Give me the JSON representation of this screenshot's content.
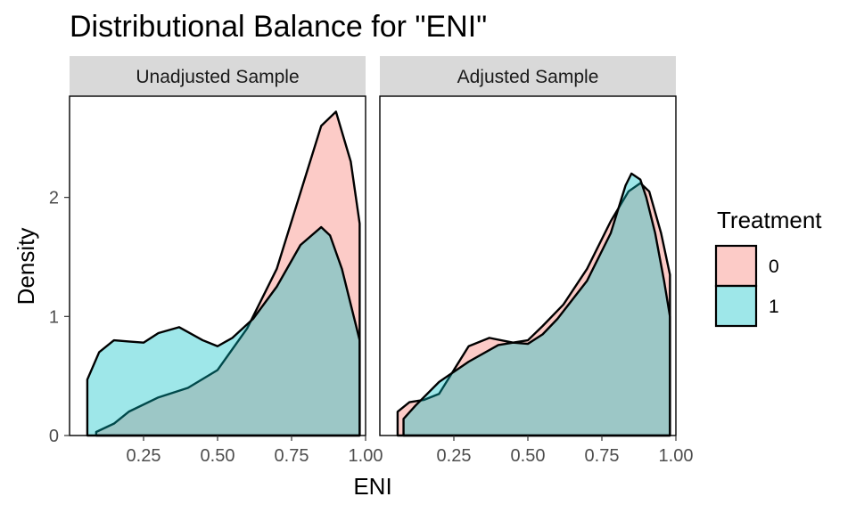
{
  "chart_data": {
    "type": "area",
    "title": "Distributional Balance for \"ENI\"",
    "xlabel": "ENI",
    "ylabel": "Density",
    "xlim": [
      0.0,
      1.0
    ],
    "ylim": [
      0,
      2.85
    ],
    "x_ticks": [
      0.25,
      0.5,
      0.75,
      1.0
    ],
    "x_tick_labels": [
      "0.25",
      "0.50",
      "0.75",
      "1.00"
    ],
    "y_ticks": [
      0,
      1,
      2
    ],
    "y_tick_labels": [
      "0",
      "1",
      "2"
    ],
    "grid": false,
    "legend": {
      "title": "Treatment",
      "placement": "right",
      "entries": [
        {
          "label": "0",
          "color": "#F8766D"
        },
        {
          "label": "1",
          "color": "#00BFC4"
        }
      ]
    },
    "facets": [
      {
        "label": "Unadjusted Sample",
        "series": [
          {
            "name": "0",
            "color": "#F8766D",
            "x": [
              0.09,
              0.15,
              0.2,
              0.3,
              0.4,
              0.5,
              0.6,
              0.7,
              0.8,
              0.85,
              0.9,
              0.95,
              0.98
            ],
            "y": [
              0.03,
              0.1,
              0.2,
              0.32,
              0.4,
              0.55,
              0.9,
              1.4,
              2.2,
              2.6,
              2.72,
              2.3,
              1.78
            ]
          },
          {
            "name": "1",
            "color": "#00BFC4",
            "x": [
              0.06,
              0.1,
              0.15,
              0.2,
              0.25,
              0.3,
              0.37,
              0.45,
              0.5,
              0.55,
              0.62,
              0.7,
              0.78,
              0.85,
              0.88,
              0.92,
              0.96,
              0.98
            ],
            "y": [
              0.47,
              0.7,
              0.8,
              0.79,
              0.78,
              0.86,
              0.91,
              0.8,
              0.75,
              0.82,
              0.98,
              1.25,
              1.6,
              1.75,
              1.68,
              1.4,
              1.0,
              0.8
            ]
          }
        ]
      },
      {
        "label": "Adjusted Sample",
        "series": [
          {
            "name": "0",
            "color": "#F8766D",
            "x": [
              0.06,
              0.1,
              0.15,
              0.2,
              0.25,
              0.3,
              0.37,
              0.45,
              0.5,
              0.55,
              0.62,
              0.7,
              0.78,
              0.84,
              0.88,
              0.91,
              0.95,
              0.98
            ],
            "y": [
              0.2,
              0.28,
              0.3,
              0.35,
              0.55,
              0.75,
              0.82,
              0.78,
              0.8,
              0.92,
              1.1,
              1.4,
              1.8,
              2.05,
              2.12,
              2.05,
              1.7,
              1.35
            ]
          },
          {
            "name": "1",
            "color": "#00BFC4",
            "x": [
              0.08,
              0.12,
              0.2,
              0.3,
              0.4,
              0.45,
              0.5,
              0.55,
              0.6,
              0.7,
              0.78,
              0.83,
              0.85,
              0.88,
              0.9,
              0.93,
              0.96,
              0.98
            ],
            "y": [
              0.14,
              0.25,
              0.45,
              0.62,
              0.76,
              0.78,
              0.77,
              0.85,
              0.98,
              1.3,
              1.7,
              2.1,
              2.2,
              2.15,
              2.0,
              1.7,
              1.3,
              1.0
            ]
          }
        ]
      }
    ]
  }
}
